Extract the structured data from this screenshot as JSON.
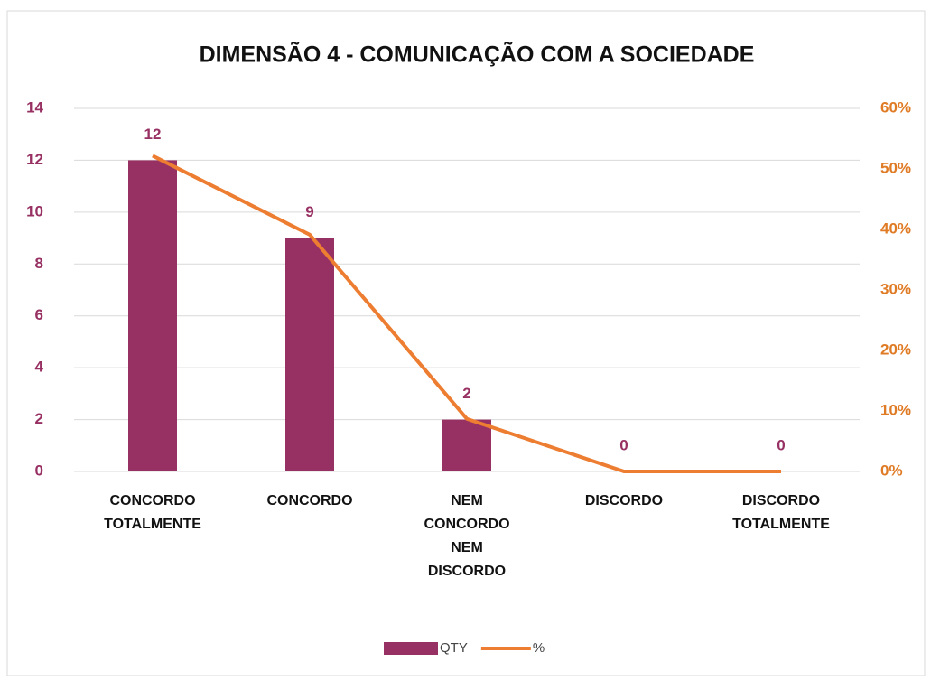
{
  "chart_data": {
    "type": "bar-line",
    "title": "DIMENSÃO 4 - COMUNICAÇÃO COM A SOCIEDADE",
    "categories": [
      "CONCORDO TOTALMENTE",
      "CONCORDO",
      "NEM CONCORDO NEM DISCORDO",
      "DISCORDO",
      "DISCORDO TOTALMENTE"
    ],
    "series": [
      {
        "name": "QTY",
        "type": "bar",
        "color": "#983163",
        "values": [
          12,
          9,
          2,
          0,
          0
        ]
      },
      {
        "name": "%",
        "type": "line",
        "axis": "y2",
        "color": "#ed7d31",
        "values": [
          52.17,
          39.13,
          8.7,
          0,
          0
        ]
      }
    ],
    "ylim": [
      0,
      14
    ],
    "yticks": [
      0,
      2,
      4,
      6,
      8,
      10,
      12,
      14
    ],
    "y2lim": [
      0,
      60
    ],
    "y2ticks": [
      {
        "value": 0,
        "label": "0%"
      },
      {
        "value": 10,
        "label": "10%"
      },
      {
        "value": 20,
        "label": "20%"
      },
      {
        "value": 30,
        "label": "30%"
      },
      {
        "value": 40,
        "label": "40%"
      },
      {
        "value": 50,
        "label": "50%"
      },
      {
        "value": 60,
        "label": "60%"
      }
    ],
    "grid": true,
    "legend": "bottom"
  }
}
